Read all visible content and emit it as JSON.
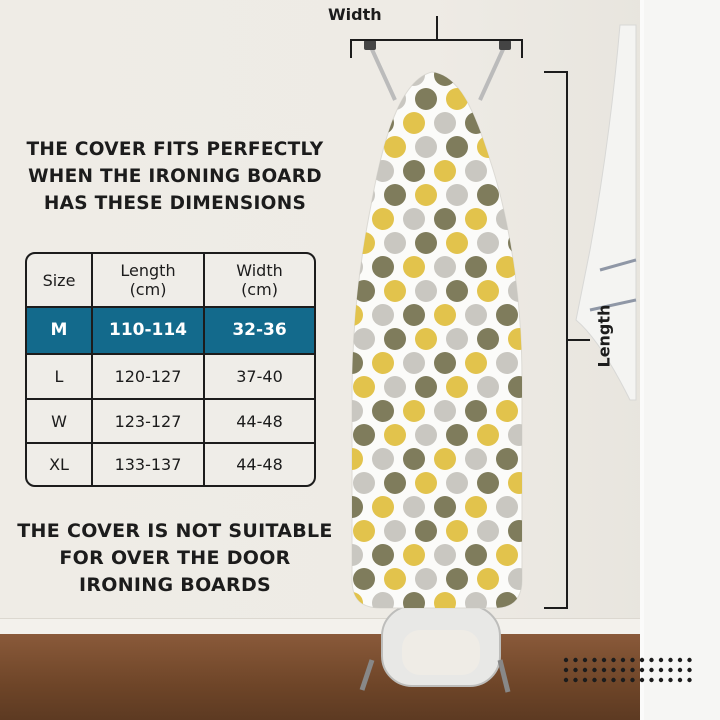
{
  "headings": {
    "top": [
      "THE COVER FITS PERFECTLY",
      "WHEN THE IRONING BOARD",
      "HAS THESE DIMENSIONS"
    ],
    "bottom": [
      "THE COVER IS NOT SUITABLE",
      "FOR OVER THE DOOR",
      "IRONING BOARDS"
    ]
  },
  "dimensions": {
    "width_label": "Width",
    "length_label": "Length"
  },
  "size_table": {
    "headers": [
      "Size",
      "Length\n(cm)",
      "Width\n(cm)"
    ],
    "header_lines": [
      [
        "Size"
      ],
      [
        "Length",
        "(cm)"
      ],
      [
        "Width",
        "(cm)"
      ]
    ],
    "rows": [
      {
        "size": "M",
        "length": "110-114",
        "width": "32-36",
        "highlighted": true
      },
      {
        "size": "L",
        "length": "120-127",
        "width": "37-40",
        "highlighted": false
      },
      {
        "size": "W",
        "length": "123-127",
        "width": "44-48",
        "highlighted": false
      },
      {
        "size": "XL",
        "length": "133-137",
        "width": "44-48",
        "highlighted": false
      }
    ]
  },
  "colors": {
    "highlight": "#136a8c",
    "dot_olive": "#7f7c5c",
    "dot_yellow": "#e2c34c",
    "dot_grey": "#c9c7c1"
  }
}
